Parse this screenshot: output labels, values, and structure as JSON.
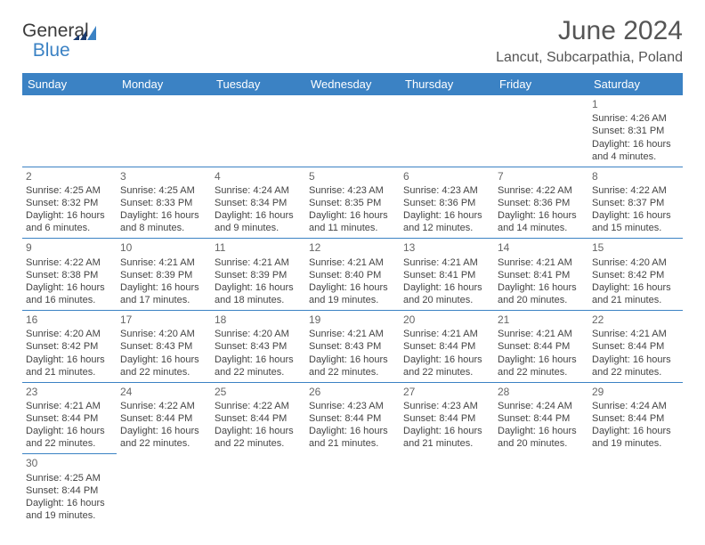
{
  "logo": {
    "text1": "General",
    "text2": "Blue"
  },
  "title": "June 2024",
  "location": "Lancut, Subcarpathia, Poland",
  "colors": {
    "header_bg": "#3b82c4",
    "header_fg": "#ffffff",
    "border": "#3b82c4",
    "text": "#444444",
    "title": "#555555"
  },
  "weekdays": [
    "Sunday",
    "Monday",
    "Tuesday",
    "Wednesday",
    "Thursday",
    "Friday",
    "Saturday"
  ],
  "weeks": [
    [
      null,
      null,
      null,
      null,
      null,
      null,
      {
        "n": "1",
        "sr": "4:26 AM",
        "ss": "8:31 PM",
        "dl": "16 hours and 4 minutes."
      }
    ],
    [
      {
        "n": "2",
        "sr": "4:25 AM",
        "ss": "8:32 PM",
        "dl": "16 hours and 6 minutes."
      },
      {
        "n": "3",
        "sr": "4:25 AM",
        "ss": "8:33 PM",
        "dl": "16 hours and 8 minutes."
      },
      {
        "n": "4",
        "sr": "4:24 AM",
        "ss": "8:34 PM",
        "dl": "16 hours and 9 minutes."
      },
      {
        "n": "5",
        "sr": "4:23 AM",
        "ss": "8:35 PM",
        "dl": "16 hours and 11 minutes."
      },
      {
        "n": "6",
        "sr": "4:23 AM",
        "ss": "8:36 PM",
        "dl": "16 hours and 12 minutes."
      },
      {
        "n": "7",
        "sr": "4:22 AM",
        "ss": "8:36 PM",
        "dl": "16 hours and 14 minutes."
      },
      {
        "n": "8",
        "sr": "4:22 AM",
        "ss": "8:37 PM",
        "dl": "16 hours and 15 minutes."
      }
    ],
    [
      {
        "n": "9",
        "sr": "4:22 AM",
        "ss": "8:38 PM",
        "dl": "16 hours and 16 minutes."
      },
      {
        "n": "10",
        "sr": "4:21 AM",
        "ss": "8:39 PM",
        "dl": "16 hours and 17 minutes."
      },
      {
        "n": "11",
        "sr": "4:21 AM",
        "ss": "8:39 PM",
        "dl": "16 hours and 18 minutes."
      },
      {
        "n": "12",
        "sr": "4:21 AM",
        "ss": "8:40 PM",
        "dl": "16 hours and 19 minutes."
      },
      {
        "n": "13",
        "sr": "4:21 AM",
        "ss": "8:41 PM",
        "dl": "16 hours and 20 minutes."
      },
      {
        "n": "14",
        "sr": "4:21 AM",
        "ss": "8:41 PM",
        "dl": "16 hours and 20 minutes."
      },
      {
        "n": "15",
        "sr": "4:20 AM",
        "ss": "8:42 PM",
        "dl": "16 hours and 21 minutes."
      }
    ],
    [
      {
        "n": "16",
        "sr": "4:20 AM",
        "ss": "8:42 PM",
        "dl": "16 hours and 21 minutes."
      },
      {
        "n": "17",
        "sr": "4:20 AM",
        "ss": "8:43 PM",
        "dl": "16 hours and 22 minutes."
      },
      {
        "n": "18",
        "sr": "4:20 AM",
        "ss": "8:43 PM",
        "dl": "16 hours and 22 minutes."
      },
      {
        "n": "19",
        "sr": "4:21 AM",
        "ss": "8:43 PM",
        "dl": "16 hours and 22 minutes."
      },
      {
        "n": "20",
        "sr": "4:21 AM",
        "ss": "8:44 PM",
        "dl": "16 hours and 22 minutes."
      },
      {
        "n": "21",
        "sr": "4:21 AM",
        "ss": "8:44 PM",
        "dl": "16 hours and 22 minutes."
      },
      {
        "n": "22",
        "sr": "4:21 AM",
        "ss": "8:44 PM",
        "dl": "16 hours and 22 minutes."
      }
    ],
    [
      {
        "n": "23",
        "sr": "4:21 AM",
        "ss": "8:44 PM",
        "dl": "16 hours and 22 minutes."
      },
      {
        "n": "24",
        "sr": "4:22 AM",
        "ss": "8:44 PM",
        "dl": "16 hours and 22 minutes."
      },
      {
        "n": "25",
        "sr": "4:22 AM",
        "ss": "8:44 PM",
        "dl": "16 hours and 22 minutes."
      },
      {
        "n": "26",
        "sr": "4:23 AM",
        "ss": "8:44 PM",
        "dl": "16 hours and 21 minutes."
      },
      {
        "n": "27",
        "sr": "4:23 AM",
        "ss": "8:44 PM",
        "dl": "16 hours and 21 minutes."
      },
      {
        "n": "28",
        "sr": "4:24 AM",
        "ss": "8:44 PM",
        "dl": "16 hours and 20 minutes."
      },
      {
        "n": "29",
        "sr": "4:24 AM",
        "ss": "8:44 PM",
        "dl": "16 hours and 19 minutes."
      }
    ],
    [
      {
        "n": "30",
        "sr": "4:25 AM",
        "ss": "8:44 PM",
        "dl": "16 hours and 19 minutes."
      },
      null,
      null,
      null,
      null,
      null,
      null
    ]
  ],
  "labels": {
    "sunrise": "Sunrise: ",
    "sunset": "Sunset: ",
    "daylight": "Daylight: "
  }
}
